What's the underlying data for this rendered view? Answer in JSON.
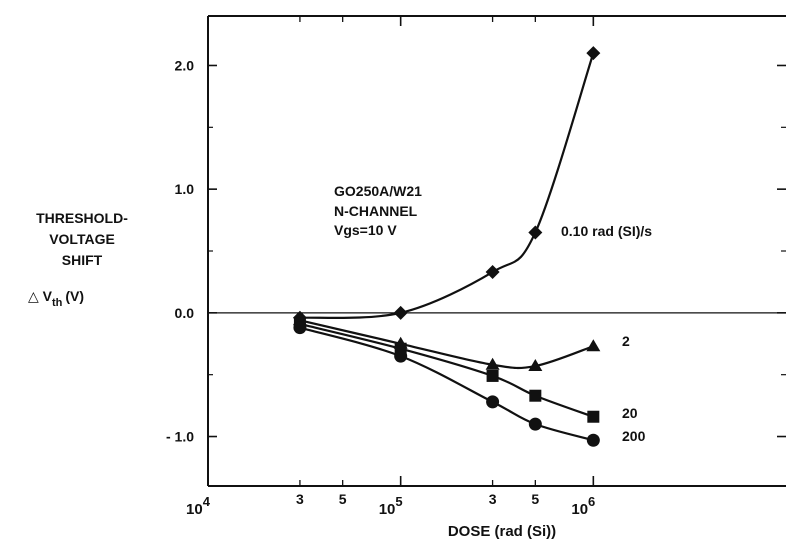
{
  "chart_data": {
    "type": "line",
    "xscale": "log",
    "xlim": [
      10000,
      10000000
    ],
    "ylim": [
      -1.4,
      2.4
    ],
    "xlabel": "DOSE (rad (Si))",
    "ylabel_lines": [
      "THRESHOLD-",
      "VOLTAGE",
      "SHIFT"
    ],
    "ylabel_symbol": "△ V",
    "ylabel_sub": "th",
    "ylabel_unit": "(V)",
    "x_major_ticks": [
      {
        "value": 10000,
        "base": "10",
        "exp": "4"
      },
      {
        "value": 100000,
        "base": "10",
        "exp": "5"
      },
      {
        "value": 1000000,
        "base": "10",
        "exp": "6"
      }
    ],
    "x_minor_labels": [
      {
        "value": 30000,
        "label": "3"
      },
      {
        "value": 50000,
        "label": "5"
      },
      {
        "value": 300000,
        "label": "3"
      },
      {
        "value": 500000,
        "label": "5"
      }
    ],
    "y_ticks": [
      {
        "value": 2.0,
        "label": "2.0"
      },
      {
        "value": 1.0,
        "label": "1.0"
      },
      {
        "value": 0.0,
        "label": "0.0"
      },
      {
        "value": -1.0,
        "label": "- 1.0"
      }
    ],
    "annotation": [
      "GO250A/W21",
      "N-CHANNEL",
      "Vgs=10 V"
    ],
    "series": [
      {
        "name": "0.10 rad (SI)/s",
        "marker": "diamond",
        "x": [
          30000,
          100000,
          300000,
          500000,
          1000000
        ],
        "y": [
          -0.04,
          0.0,
          0.33,
          0.65,
          2.1
        ]
      },
      {
        "name": "2",
        "marker": "triangle",
        "x": [
          30000,
          100000,
          300000,
          500000,
          1000000
        ],
        "y": [
          -0.06,
          -0.25,
          -0.42,
          -0.43,
          -0.27
        ]
      },
      {
        "name": "20",
        "marker": "square",
        "x": [
          30000,
          100000,
          300000,
          500000,
          1000000
        ],
        "y": [
          -0.09,
          -0.29,
          -0.51,
          -0.67,
          -0.84
        ]
      },
      {
        "name": "200",
        "marker": "circle",
        "x": [
          30000,
          100000,
          300000,
          500000,
          1000000
        ],
        "y": [
          -0.12,
          -0.35,
          -0.72,
          -0.9,
          -1.03
        ]
      }
    ]
  }
}
